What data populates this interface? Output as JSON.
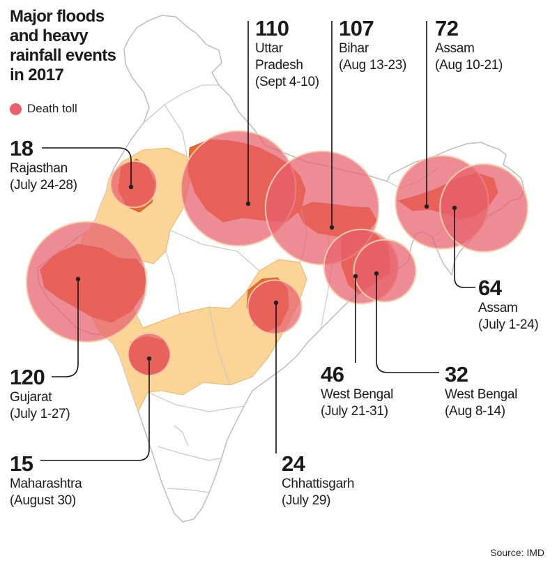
{
  "title": "Major floods\nand heavy\nrainfall events\nin 2017",
  "legend": {
    "label": "Death toll",
    "color": "#e8606c"
  },
  "source": "Source: IMD",
  "colors": {
    "bubble": "#e8606c",
    "affected_state": "#ea6a2e",
    "highlight_region": "#fcd596",
    "land": "#ffffff",
    "border": "#c9c9c9"
  },
  "events": [
    {
      "id": "uttar-pradesh",
      "death_toll": "110",
      "state": "Uttar",
      "state_line2": "Pradesh",
      "dates": "(Sept 4-10)",
      "value": 110
    },
    {
      "id": "bihar",
      "death_toll": "107",
      "state": "Bihar",
      "dates": "(Aug 13-23)",
      "value": 107
    },
    {
      "id": "assam-aug",
      "death_toll": "72",
      "state": "Assam",
      "dates": "(Aug 10-21)",
      "value": 72
    },
    {
      "id": "rajasthan",
      "death_toll": "18",
      "state": "Rajasthan",
      "dates": "(July 24-28)",
      "value": 18
    },
    {
      "id": "gujarat",
      "death_toll": "120",
      "state": "Gujarat",
      "dates": "(July 1-27)",
      "value": 120
    },
    {
      "id": "maharashtra",
      "death_toll": "15",
      "state": "Maharashtra",
      "dates": "(August 30)",
      "value": 15
    },
    {
      "id": "chhattisgarh",
      "death_toll": "24",
      "state": "Chhattisgarh",
      "dates": "(July 29)",
      "value": 24
    },
    {
      "id": "west-bengal-july",
      "death_toll": "46",
      "state": "West Bengal",
      "dates": "(July 21-31)",
      "value": 46
    },
    {
      "id": "west-bengal-aug",
      "death_toll": "32",
      "state": "West Bengal",
      "dates": "(Aug 8-14)",
      "value": 32
    },
    {
      "id": "assam-july",
      "death_toll": "64",
      "state": "Assam",
      "dates": "(July 1-24)",
      "value": 64
    }
  ]
}
